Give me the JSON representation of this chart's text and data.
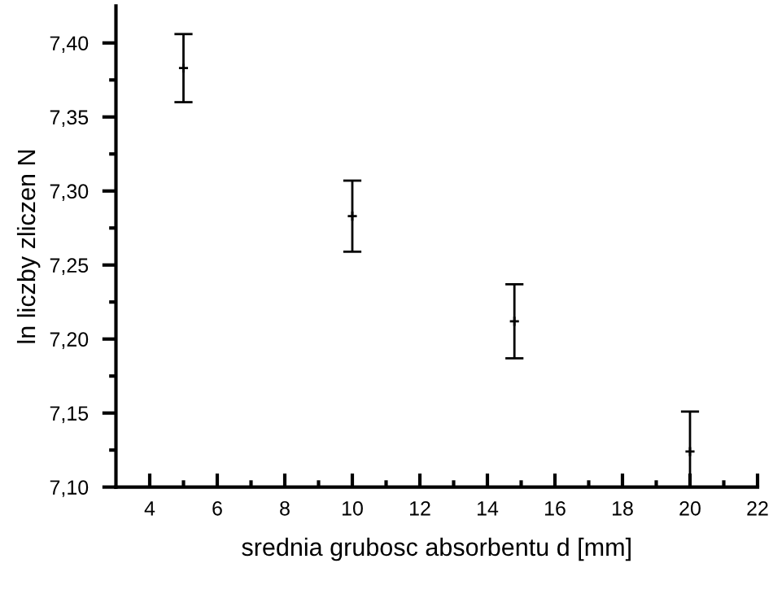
{
  "chart_data": {
    "type": "scatter",
    "xlabel": "srednia grubosc absorbentu d [mm]",
    "ylabel": "ln liczby zliczen N",
    "x": [
      5,
      10,
      14.8,
      20
    ],
    "series": [
      {
        "color": "#000000",
        "values": [
          7.383,
          7.283,
          7.212,
          7.124
        ],
        "errors": [
          0.023,
          0.024,
          0.025,
          [
            7.1,
            7.151
          ]
        ]
      }
    ],
    "marker": "cross",
    "xlim": [
      3,
      22
    ],
    "xticks": [
      4,
      6,
      8,
      10,
      12,
      14,
      16,
      18,
      20,
      22
    ],
    "ylim": [
      7.1,
      7.425
    ],
    "yticks": [
      {
        "value": 7.1,
        "label": "7,10"
      },
      {
        "value": 7.15,
        "label": "7,15"
      },
      {
        "value": 7.2,
        "label": "7,20"
      },
      {
        "value": 7.25,
        "label": "7,25"
      },
      {
        "value": 7.3,
        "label": "7,30"
      },
      {
        "value": 7.35,
        "label": "7,35"
      },
      {
        "value": 7.4,
        "label": "7,40"
      }
    ],
    "grid": false
  }
}
